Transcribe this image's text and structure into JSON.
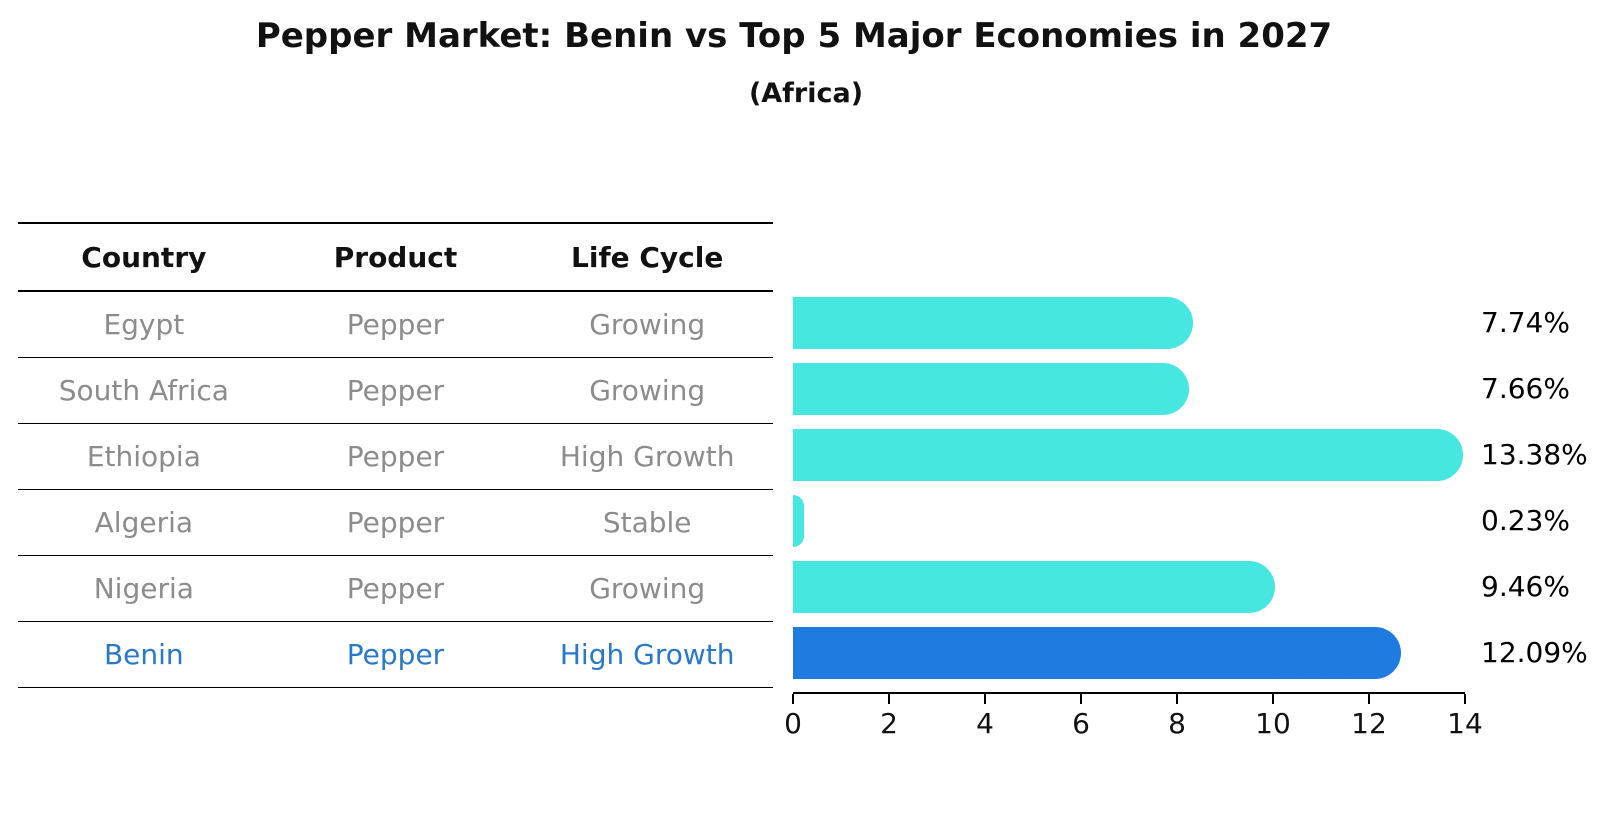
{
  "title": "Pepper Market: Benin vs Top 5 Major Economies in 2027",
  "subtitle": "(Africa)",
  "table": {
    "headers": [
      "Country",
      "Product",
      "Life Cycle"
    ],
    "rows": [
      {
        "country": "Egypt",
        "product": "Pepper",
        "life_cycle": "Growing",
        "highlighted": false
      },
      {
        "country": "South Africa",
        "product": "Pepper",
        "life_cycle": "Growing",
        "highlighted": false
      },
      {
        "country": "Ethiopia",
        "product": "Pepper",
        "life_cycle": "High Growth",
        "highlighted": false
      },
      {
        "country": "Algeria",
        "product": "Pepper",
        "life_cycle": "Stable",
        "highlighted": false
      },
      {
        "country": "Nigeria",
        "product": "Pepper",
        "life_cycle": "Growing",
        "highlighted": false
      },
      {
        "country": "Benin",
        "product": "Pepper",
        "life_cycle": "High Growth",
        "highlighted": true
      }
    ]
  },
  "chart_data": {
    "type": "bar",
    "orientation": "horizontal",
    "title": "Pepper Market: Benin vs Top 5 Major Economies in 2027",
    "subtitle": "(Africa)",
    "categories": [
      "Egypt",
      "South Africa",
      "Ethiopia",
      "Algeria",
      "Nigeria",
      "Benin"
    ],
    "values": [
      7.74,
      7.66,
      13.38,
      0.23,
      9.46,
      12.09
    ],
    "value_labels": [
      "7.74%",
      "7.66%",
      "13.38%",
      "0.23%",
      "9.46%",
      "12.09%"
    ],
    "unit": "%",
    "xlim": [
      0,
      14
    ],
    "x_ticks": [
      0,
      2,
      4,
      6,
      8,
      10,
      12,
      14
    ],
    "grid": false,
    "legend": false,
    "bar_color": "#45e7e0",
    "highlight_bar_color": "#1f7be0",
    "highlight_index": 5,
    "highlight_text_color": "#2878cb"
  },
  "colors": {
    "background": "#ffffff",
    "header_text": "#111111",
    "row_text": "#8c8c8c",
    "value_text": "#000000",
    "axis": "#000000"
  }
}
